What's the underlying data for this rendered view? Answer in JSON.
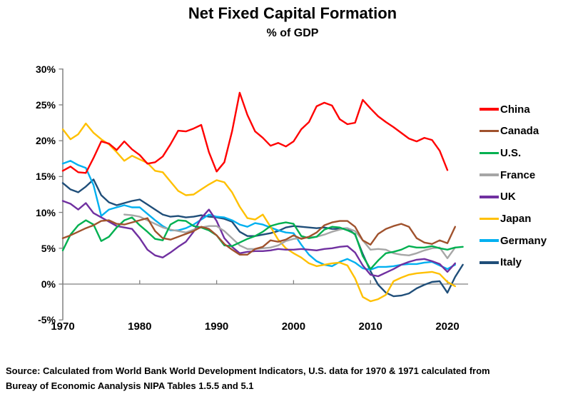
{
  "title": "Net Fixed Capital Formation",
  "subtitle": "% of GDP",
  "source": {
    "line1": "Source:  Calculated from World Bank World Development Indicators, U.S. data for 1970 & 1971 calculated from",
    "line2": "Bureay of Economic Aanalysis NIPA Tables 1.5.5 and 5.1"
  },
  "chart_data": {
    "type": "line",
    "title": "Net Fixed Capital Formation",
    "subtitle": "% of GDP",
    "grid": false,
    "legend_position": "right",
    "axis_color": "#808080",
    "x_axis": {
      "range": [
        1970,
        2023
      ],
      "tick_years": [
        1970,
        1980,
        1990,
        2000,
        2010,
        2020
      ]
    },
    "y_axis": {
      "range": [
        -5,
        30
      ],
      "unit": "%",
      "tick_values": [
        30,
        25,
        20,
        15,
        10,
        5,
        0,
        -5
      ],
      "tick_labels": [
        "30%",
        "25%",
        "20%",
        "15%",
        "10%",
        "5%",
        "0%",
        "-5%"
      ],
      "zero_line": true
    },
    "series": [
      {
        "name": "China",
        "color": "#FF0000",
        "start_year": 1970,
        "values": [
          15.8,
          16.4,
          15.6,
          15.5,
          17.6,
          19.9,
          19.6,
          18.7,
          19.9,
          18.8,
          18.0,
          16.8,
          17.0,
          17.8,
          19.5,
          21.4,
          21.3,
          21.7,
          22.2,
          18.4,
          15.7,
          17.0,
          21.3,
          26.7,
          23.6,
          21.3,
          20.4,
          19.3,
          19.7,
          19.2,
          19.9,
          21.6,
          22.6,
          24.8,
          25.3,
          24.9,
          23.0,
          22.3,
          22.5,
          25.7,
          24.5,
          23.4,
          22.6,
          21.9,
          21.1,
          20.3,
          19.9,
          20.4,
          20.1,
          18.6,
          15.9
        ]
      },
      {
        "name": "Canada",
        "color": "#A0522D",
        "start_year": 1970,
        "values": [
          6.4,
          6.8,
          7.3,
          7.8,
          8.2,
          8.8,
          8.9,
          8.4,
          8.3,
          8.6,
          8.9,
          9.2,
          7.4,
          6.4,
          6.2,
          6.6,
          7.0,
          7.4,
          8.0,
          7.7,
          6.8,
          5.6,
          4.8,
          4.1,
          4.1,
          4.9,
          5.2,
          6.1,
          5.9,
          6.2,
          6.8,
          6.3,
          6.6,
          7.2,
          8.2,
          8.6,
          8.8,
          8.8,
          8.0,
          6.1,
          5.5,
          7.0,
          7.7,
          8.1,
          8.4,
          8.0,
          6.4,
          5.8,
          5.6,
          6.1,
          5.7,
          8.0
        ]
      },
      {
        "name": "U.S.",
        "color": "#00B050",
        "start_year": 1970,
        "values": [
          4.7,
          6.9,
          8.2,
          8.9,
          8.3,
          6.0,
          6.6,
          7.9,
          8.9,
          9.3,
          8.2,
          7.3,
          6.3,
          6.1,
          8.3,
          8.9,
          8.8,
          8.1,
          7.9,
          7.5,
          6.8,
          5.4,
          5.3,
          5.8,
          6.3,
          6.7,
          7.3,
          8.1,
          8.4,
          8.6,
          8.4,
          6.7,
          6.4,
          6.6,
          7.6,
          8.0,
          7.9,
          7.5,
          7.0,
          3.9,
          2.1,
          3.3,
          4.3,
          4.5,
          4.8,
          5.3,
          5.1,
          5.1,
          5.3,
          5.0,
          4.8,
          5.1,
          5.2
        ]
      },
      {
        "name": "France",
        "color": "#A6A6A6",
        "start_year": 1978,
        "values": [
          9.7,
          9.6,
          9.4,
          8.9,
          8.4,
          7.9,
          7.6,
          7.4,
          7.2,
          7.6,
          7.9,
          8.1,
          8.1,
          7.4,
          6.4,
          5.4,
          4.9,
          4.9,
          5.0,
          5.1,
          5.4,
          6.0,
          6.3,
          6.4,
          6.5,
          6.6,
          6.9,
          7.3,
          7.6,
          7.8,
          7.4,
          6.1,
          4.8,
          4.9,
          4.8,
          4.3,
          4.1,
          4.0,
          4.3,
          4.7,
          5.0,
          5.1,
          3.6,
          5.1
        ]
      },
      {
        "name": "UK",
        "color": "#7030A0",
        "start_year": 1970,
        "values": [
          11.6,
          11.2,
          10.4,
          11.3,
          9.9,
          9.3,
          8.7,
          8.1,
          7.9,
          7.7,
          6.4,
          4.8,
          4.0,
          3.7,
          4.4,
          5.2,
          5.9,
          7.3,
          9.2,
          10.4,
          8.8,
          6.4,
          5.2,
          4.3,
          4.5,
          4.6,
          4.6,
          4.7,
          4.9,
          4.8,
          4.8,
          4.9,
          4.8,
          4.7,
          4.9,
          5.0,
          5.2,
          5.3,
          4.4,
          2.6,
          1.3,
          1.1,
          1.6,
          2.1,
          2.7,
          3.1,
          3.4,
          3.5,
          3.2,
          2.8,
          1.7,
          2.9
        ]
      },
      {
        "name": "Japan",
        "color": "#FFC000",
        "start_year": 1970,
        "values": [
          21.6,
          20.2,
          20.9,
          22.4,
          21.1,
          20.2,
          19.5,
          18.4,
          17.2,
          17.9,
          17.4,
          16.9,
          15.8,
          15.6,
          14.3,
          13.0,
          12.4,
          12.5,
          13.2,
          13.9,
          14.5,
          14.2,
          12.8,
          10.8,
          9.2,
          9.0,
          9.7,
          8.0,
          6.2,
          5.0,
          4.3,
          3.7,
          2.9,
          2.5,
          2.7,
          2.9,
          3.0,
          2.6,
          0.8,
          -1.8,
          -2.4,
          -2.1,
          -1.5,
          0.4,
          0.9,
          1.3,
          1.5,
          1.6,
          1.7,
          1.4,
          0.3,
          -0.3
        ]
      },
      {
        "name": "Germany",
        "color": "#00B0F0",
        "start_year": 1970,
        "values": [
          16.8,
          17.2,
          16.6,
          16.2,
          13.8,
          9.5,
          10.4,
          10.7,
          11.0,
          10.7,
          10.7,
          9.8,
          8.9,
          8.1,
          7.5,
          7.5,
          7.8,
          8.3,
          9.0,
          9.7,
          9.4,
          9.3,
          8.9,
          8.3,
          8.0,
          8.5,
          8.3,
          7.9,
          7.5,
          7.2,
          7.1,
          5.5,
          4.1,
          3.2,
          2.7,
          2.5,
          3.1,
          3.5,
          3.0,
          2.2,
          2.0,
          2.4,
          2.4,
          2.5,
          2.7,
          2.8,
          2.8,
          3.0,
          3.1,
          2.6,
          2.1,
          2.7
        ]
      },
      {
        "name": "Italy",
        "color": "#1F4E79",
        "start_year": 1970,
        "values": [
          14.1,
          13.2,
          12.8,
          13.6,
          14.6,
          12.4,
          11.4,
          11.0,
          11.3,
          11.6,
          11.8,
          11.1,
          10.4,
          9.7,
          9.4,
          9.5,
          9.3,
          9.4,
          9.6,
          9.4,
          9.3,
          9.1,
          8.7,
          7.3,
          6.7,
          6.7,
          6.9,
          7.1,
          7.4,
          7.9,
          8.1,
          8.0,
          7.9,
          7.8,
          7.9,
          7.7,
          7.7,
          7.8,
          6.9,
          4.2,
          1.8,
          -0.1,
          -1.2,
          -1.7,
          -1.6,
          -1.3,
          -0.6,
          -0.1,
          0.3,
          0.4,
          -1.2,
          1.0,
          2.7
        ]
      }
    ]
  }
}
